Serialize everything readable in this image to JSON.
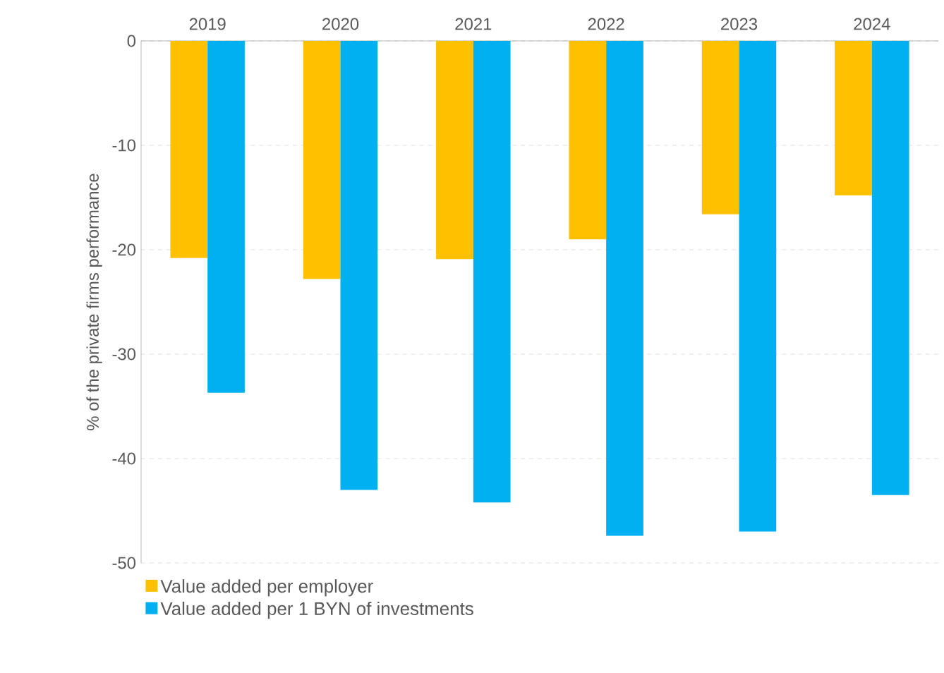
{
  "chart_data": {
    "type": "bar",
    "ylabel": "% of the private firms performance",
    "categories": [
      "2019",
      "2020",
      "2021",
      "2022",
      "2023",
      "2024"
    ],
    "series": [
      {
        "name": "Value added per employer",
        "color": "#ffc000",
        "values": [
          -20.8,
          -22.8,
          -20.9,
          -19.0,
          -16.6,
          -14.8
        ]
      },
      {
        "name": "Value added per 1 BYN of investments",
        "color": "#00b0f0",
        "values": [
          -33.7,
          -43.0,
          -44.2,
          -47.4,
          -47.0,
          -43.5
        ]
      }
    ],
    "ylim": [
      -50,
      0
    ],
    "yticks": [
      -50,
      -40,
      -30,
      -20,
      -10,
      0
    ],
    "grid": "y",
    "legend": "bottom left"
  }
}
